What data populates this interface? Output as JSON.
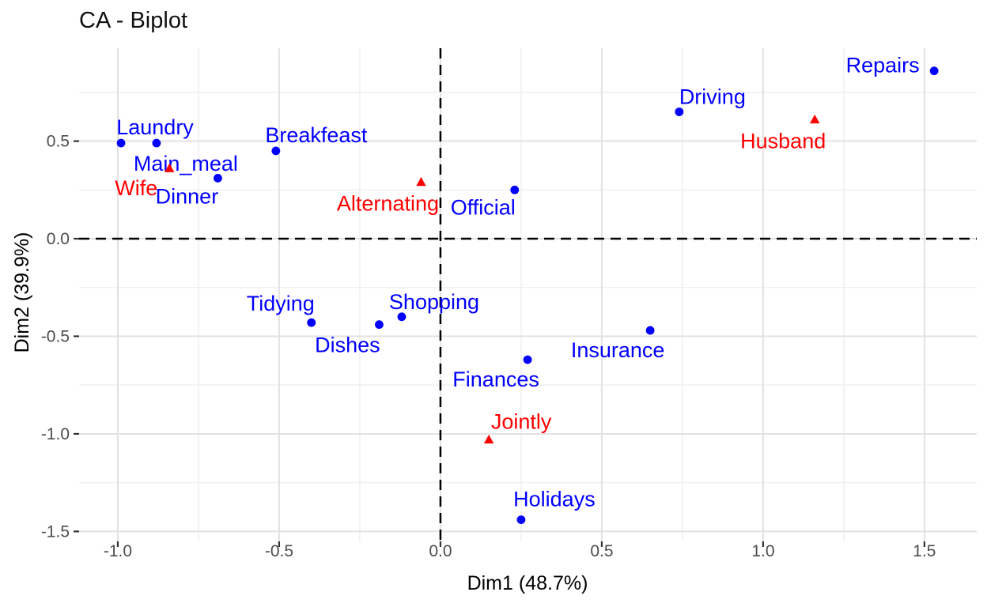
{
  "chart_data": {
    "type": "scatter",
    "title": "CA - Biplot",
    "xlabel": "Dim1 (48.7%)",
    "ylabel": "Dim2 (39.9%)",
    "xlim": [
      -1.12,
      1.662
    ],
    "ylim": [
      -1.551,
      0.976
    ],
    "x_ticks": [
      -1.0,
      -0.5,
      0.0,
      0.5,
      1.0,
      1.5
    ],
    "x_tick_labels": [
      "-1.0",
      "-0.5",
      "0.0",
      "0.5",
      "1.0",
      "1.5"
    ],
    "x_minor_ticks": [
      -0.75,
      -0.25,
      0.25,
      0.75,
      1.25
    ],
    "y_ticks": [
      0.5,
      0.0,
      -0.5,
      -1.0,
      -1.5
    ],
    "y_tick_labels": [
      "0.5",
      "0.0",
      "-0.5",
      "-1.0",
      "-1.5"
    ],
    "y_minor_ticks": [
      0.75,
      0.25,
      -0.25,
      -0.75,
      -1.25
    ],
    "grid": true,
    "legend": "none",
    "reference_lines": [
      {
        "axis": "x",
        "value": 0,
        "style": "dashed",
        "color": "#000000"
      },
      {
        "axis": "y",
        "value": 0,
        "style": "dashed",
        "color": "#000000"
      }
    ],
    "colors": {
      "rows": "#0000FF",
      "columns": "#FF0000",
      "grid_major": "#E2E2E2",
      "grid_minor": "#F0F0F0",
      "tick_text": "#4D4D4D",
      "tick_mark": "#333333",
      "axis_title": "#000000",
      "title": "#111111",
      "background": "#FFFFFF"
    },
    "series": [
      {
        "name": "rows",
        "marker": "circle",
        "color": "#0000FF",
        "points": [
          {
            "label": "Laundry",
            "x": -0.99,
            "y": 0.49,
            "label_dx": 43,
            "label_dy": -20
          },
          {
            "label": "Main_meal",
            "x": -0.88,
            "y": 0.49,
            "label_dx": 37,
            "label_dy": 26
          },
          {
            "label": "Dinner",
            "x": -0.69,
            "y": 0.31,
            "label_dx": -39,
            "label_dy": 23
          },
          {
            "label": "Breakfeast",
            "x": -0.51,
            "y": 0.45,
            "label_dx": 51,
            "label_dy": -20
          },
          {
            "label": "Tidying",
            "x": -0.4,
            "y": -0.43,
            "label_dx": -39,
            "label_dy": -24
          },
          {
            "label": "Dishes",
            "x": -0.19,
            "y": -0.44,
            "label_dx": -40,
            "label_dy": 26
          },
          {
            "label": "Shopping",
            "x": -0.12,
            "y": -0.4,
            "label_dx": 41,
            "label_dy": -19
          },
          {
            "label": "Official",
            "x": 0.23,
            "y": 0.25,
            "label_dx": -40,
            "label_dy": 22
          },
          {
            "label": "Driving",
            "x": 0.74,
            "y": 0.65,
            "label_dx": 42,
            "label_dy": -19
          },
          {
            "label": "Finances",
            "x": 0.27,
            "y": -0.62,
            "label_dx": -40,
            "label_dy": 25
          },
          {
            "label": "Insurance",
            "x": 0.65,
            "y": -0.47,
            "label_dx": -41,
            "label_dy": 25
          },
          {
            "label": "Repairs",
            "x": 1.53,
            "y": 0.86,
            "label_dx": -65,
            "label_dy": -7
          },
          {
            "label": "Holidays",
            "x": 0.25,
            "y": -1.44,
            "label_dx": 42,
            "label_dy": -26
          }
        ]
      },
      {
        "name": "columns",
        "marker": "triangle-up",
        "color": "#FF0000",
        "points": [
          {
            "label": "Wife",
            "x": -0.84,
            "y": 0.36,
            "label_dx": -42,
            "label_dy": 25
          },
          {
            "label": "Alternating",
            "x": -0.06,
            "y": 0.29,
            "label_dx": -42,
            "label_dy": 27
          },
          {
            "label": "Husband",
            "x": 1.16,
            "y": 0.61,
            "label_dx": -40,
            "label_dy": 27
          },
          {
            "label": "Jointly",
            "x": 0.15,
            "y": -1.03,
            "label_dx": 41,
            "label_dy": -23
          }
        ]
      }
    ]
  }
}
